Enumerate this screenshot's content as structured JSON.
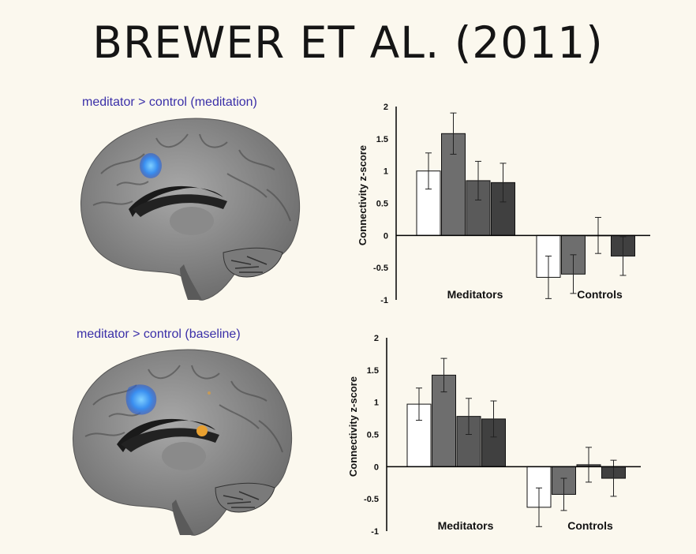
{
  "title": "BREWER ET AL. (2011)",
  "panels": [
    {
      "caption": "meditator > control (meditation)",
      "chart_data": {
        "type": "bar",
        "ylabel": "Connectivity z-score",
        "ylim": [
          -1,
          2
        ],
        "yticks": [
          "2",
          "1.5",
          "1",
          "0.5",
          "0",
          "-0.5",
          "-1"
        ],
        "categories": [
          "Meditators",
          "Controls"
        ],
        "series": [
          {
            "color": "#ffffff",
            "values": [
              1.0,
              -0.65
            ],
            "errors": [
              0.28,
              0.33
            ]
          },
          {
            "color": "#6e6e6e",
            "values": [
              1.58,
              -0.6
            ],
            "errors": [
              0.32,
              0.3
            ]
          },
          {
            "color": "#5a5a5a",
            "values": [
              0.85,
              -0.0
            ],
            "errors": [
              0.3,
              0.28
            ]
          },
          {
            "color": "#404040",
            "values": [
              0.82,
              -0.32
            ],
            "errors": [
              0.3,
              0.3
            ]
          }
        ]
      }
    },
    {
      "caption": "meditator > control (baseline)",
      "chart_data": {
        "type": "bar",
        "ylabel": "Connectivity z-score",
        "ylim": [
          -1,
          2
        ],
        "yticks": [
          "2",
          "1.5",
          "1",
          "0.5",
          "0",
          "-0.5",
          "-1"
        ],
        "categories": [
          "Meditators",
          "Controls"
        ],
        "series": [
          {
            "color": "#ffffff",
            "values": [
              0.97,
              -0.63
            ],
            "errors": [
              0.25,
              0.3
            ]
          },
          {
            "color": "#6e6e6e",
            "values": [
              1.42,
              -0.43
            ],
            "errors": [
              0.26,
              0.25
            ]
          },
          {
            "color": "#5a5a5a",
            "values": [
              0.78,
              0.03
            ],
            "errors": [
              0.28,
              0.27
            ]
          },
          {
            "color": "#404040",
            "values": [
              0.74,
              -0.18
            ],
            "errors": [
              0.28,
              0.28
            ]
          }
        ]
      }
    }
  ]
}
